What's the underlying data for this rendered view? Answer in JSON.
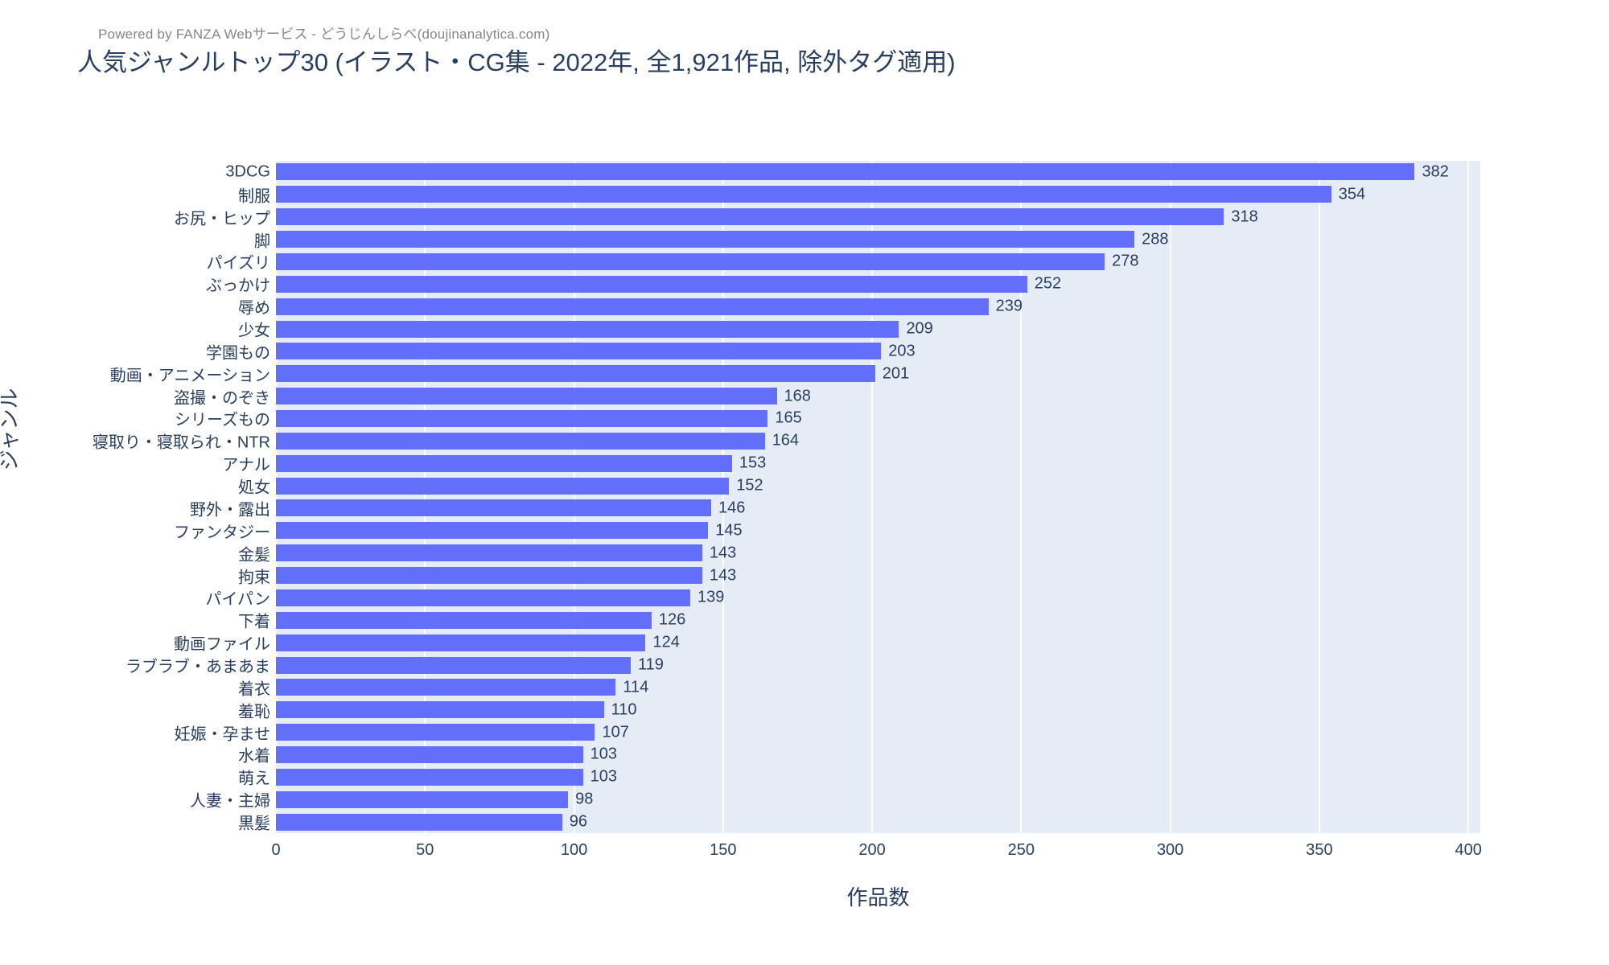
{
  "header": {
    "powered_by": "Powered by FANZA Webサービス - どうじんしらべ(doujinanalytica.com)",
    "title": "人気ジャンルトップ30 (イラスト・CG集 - 2022年, 全1,921作品, 除外タグ適用)"
  },
  "chart_data": {
    "type": "bar",
    "orientation": "horizontal",
    "title": "人気ジャンルトップ30 (イラスト・CG集 - 2022年, 全1,921作品, 除外タグ適用)",
    "xlabel": "作品数",
    "ylabel": "ジャンル",
    "categories": [
      "3DCG",
      "制服",
      "お尻・ヒップ",
      "脚",
      "パイズリ",
      "ぶっかけ",
      "辱め",
      "少女",
      "学園もの",
      "動画・アニメーション",
      "盗撮・のぞき",
      "シリーズもの",
      "寝取り・寝取られ・NTR",
      "アナル",
      "処女",
      "野外・露出",
      "ファンタジー",
      "金髪",
      "拘束",
      "パイパン",
      "下着",
      "動画ファイル",
      "ラブラブ・あまあま",
      "着衣",
      "羞恥",
      "妊娠・孕ませ",
      "水着",
      "萌え",
      "人妻・主婦",
      "黒髪"
    ],
    "values": [
      382,
      354,
      318,
      288,
      278,
      252,
      239,
      209,
      203,
      201,
      168,
      165,
      164,
      153,
      152,
      146,
      145,
      143,
      143,
      139,
      126,
      124,
      119,
      114,
      110,
      107,
      103,
      103,
      98,
      96
    ],
    "value_labels_shown": true,
    "xticks": [
      0,
      50,
      100,
      150,
      200,
      250,
      300,
      350,
      400
    ],
    "xlim": [
      0,
      404
    ],
    "grid": "on",
    "legend": "none",
    "bar_color": "#636EFA",
    "plot_bg_color": "#E5ECF6",
    "grid_color": "#FFFFFF",
    "text_color": "#2a3f5f",
    "powered_by_color": "#83868b"
  }
}
